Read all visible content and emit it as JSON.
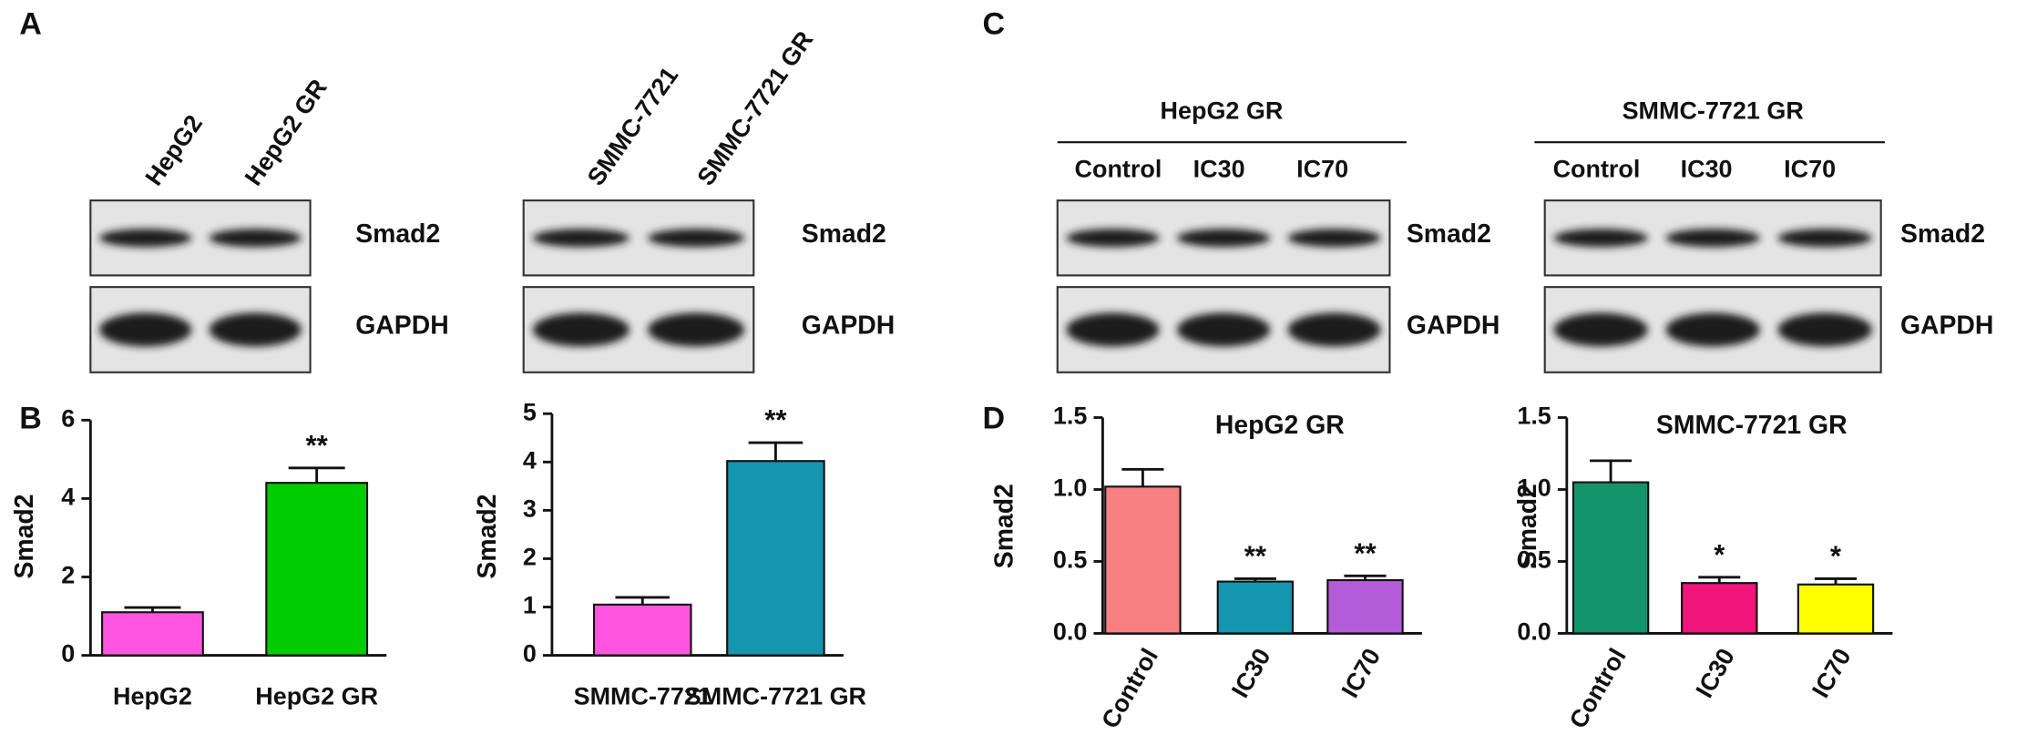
{
  "panel_labels": [
    "A",
    "B",
    "C",
    "D"
  ],
  "blots": [
    {
      "lanes": [
        "HepG2",
        "HepG2 GR"
      ],
      "rows": [
        "Smad2",
        "GAPDH"
      ]
    },
    {
      "lanes": [
        "SMMC-7721",
        "SMMC-7721 GR"
      ],
      "rows": [
        "Smad2",
        "GAPDH"
      ]
    },
    {
      "group": "HepG2 GR",
      "lanes": [
        "Control",
        "IC30",
        "IC70"
      ],
      "rows": [
        "Smad2",
        "GAPDH"
      ]
    },
    {
      "group": "SMMC-7721 GR",
      "lanes": [
        "Control",
        "IC30",
        "IC70"
      ],
      "rows": [
        "Smad2",
        "GAPDH"
      ]
    }
  ],
  "chart_data": [
    {
      "type": "bar",
      "ylabel": "Smad2",
      "categories": [
        "HepG2",
        "HepG2 GR"
      ],
      "values": [
        1.1,
        4.4
      ],
      "errors": [
        0.12,
        0.38
      ],
      "colors": [
        "#ff55e0",
        "#00cc00"
      ],
      "annotations": [
        null,
        "**"
      ],
      "ylim": [
        0,
        6
      ],
      "yticks": [
        0,
        2,
        4,
        6
      ]
    },
    {
      "type": "bar",
      "ylabel": "Smad2",
      "categories": [
        "SMMC-7721",
        "SMMC-7721 GR"
      ],
      "values": [
        1.05,
        4.02
      ],
      "errors": [
        0.15,
        0.38
      ],
      "colors": [
        "#ff55e0",
        "#1596b0"
      ],
      "annotations": [
        null,
        "**"
      ],
      "ylim": [
        0,
        5
      ],
      "yticks": [
        0,
        1,
        2,
        3,
        4,
        5
      ]
    },
    {
      "type": "bar",
      "title": "HepG2 GR",
      "ylabel": "Smad2",
      "categories": [
        "Control",
        "IC30",
        "IC70"
      ],
      "values": [
        1.02,
        0.36,
        0.37
      ],
      "errors": [
        0.12,
        0.02,
        0.03
      ],
      "colors": [
        "#f98080",
        "#1596b0",
        "#b45cd8"
      ],
      "annotations": [
        null,
        "**",
        "**"
      ],
      "ylim": [
        0,
        1.5
      ],
      "yticks": [
        {
          "value": 0,
          "label": "0.0"
        },
        0.5,
        {
          "value": 1,
          "label": "1.0"
        },
        1.5
      ]
    },
    {
      "type": "bar",
      "title": "SMMC-7721 GR",
      "ylabel": "Smad2",
      "categories": [
        "Control",
        "IC30",
        "IC70"
      ],
      "values": [
        1.05,
        0.35,
        0.34
      ],
      "errors": [
        0.15,
        0.04,
        0.04
      ],
      "colors": [
        "#14946a",
        "#f0157a",
        "#ffff00"
      ],
      "annotations": [
        null,
        "*",
        "*"
      ],
      "ylim": [
        0,
        1.5
      ],
      "yticks": [
        {
          "value": 0,
          "label": "0.0"
        },
        0.5,
        {
          "value": 1,
          "label": "1.0"
        },
        1.5
      ]
    }
  ]
}
